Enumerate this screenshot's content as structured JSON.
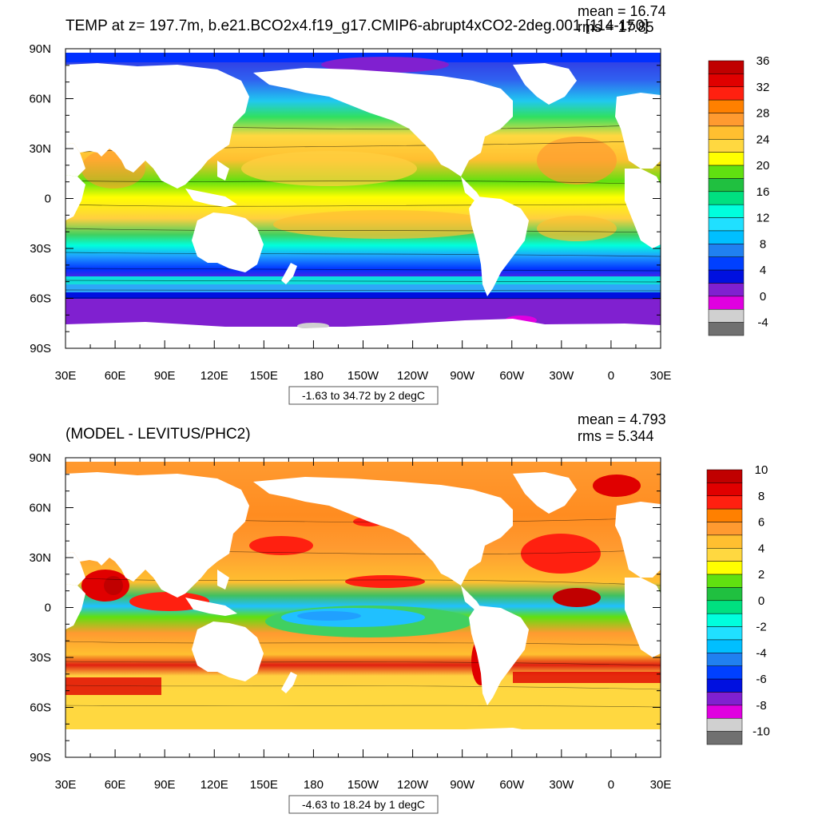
{
  "panels": [
    {
      "title": "TEMP at z= 197.7m, b.e21.BCO2x4.f19_g17.CMIP6-abrupt4xCO2-2deg.001 [114-150]",
      "mean_text": "mean = 16.74",
      "rms_text": "rms = 17.85",
      "range_text": "-1.63 to 34.72 by 2 degC",
      "lat_ticks": [
        "90N",
        "60N",
        "30N",
        "0",
        "30S",
        "60S",
        "90S"
      ],
      "lon_ticks": [
        "30E",
        "60E",
        "90E",
        "120E",
        "150E",
        "180",
        "150W",
        "120W",
        "90W",
        "60W",
        "30W",
        "0",
        "30E"
      ],
      "colorbar": {
        "labels": [
          "36",
          "32",
          "28",
          "24",
          "20",
          "16",
          "12",
          "8",
          "4",
          "0",
          "-4"
        ],
        "colors": [
          "#c00000",
          "#e00000",
          "#ff2010",
          "#ff8000",
          "#ff9a30",
          "#ffbf30",
          "#ffd840",
          "#ffff00",
          "#60e010",
          "#20c040",
          "#00e080",
          "#00ffdd",
          "#20e0ff",
          "#00bfff",
          "#2080f0",
          "#0040ff",
          "#0010e0",
          "#8020d0",
          "#e000e0",
          "#d0d0d0",
          "#707070"
        ]
      }
    },
    {
      "title": "(MODEL - LEVITUS/PHC2)",
      "mean_text": "mean = 4.793",
      "rms_text": "rms = 5.344",
      "range_text": "-4.63 to 18.24 by 1 degC",
      "lat_ticks": [
        "90N",
        "60N",
        "30N",
        "0",
        "30S",
        "60S",
        "90S"
      ],
      "lon_ticks": [
        "30E",
        "60E",
        "90E",
        "120E",
        "150E",
        "180",
        "150W",
        "120W",
        "90W",
        "60W",
        "30W",
        "0",
        "30E"
      ],
      "colorbar": {
        "labels": [
          "10",
          "8",
          "6",
          "4",
          "2",
          "0",
          "-2",
          "-4",
          "-6",
          "-8",
          "-10"
        ],
        "colors": [
          "#c00000",
          "#e00000",
          "#ff2010",
          "#ff8000",
          "#ff9a30",
          "#ffbf30",
          "#ffd840",
          "#ffff00",
          "#60e010",
          "#20c040",
          "#00e080",
          "#00ffdd",
          "#20e0ff",
          "#00bfff",
          "#2080f0",
          "#0040ff",
          "#0010e0",
          "#8020d0",
          "#e000e0",
          "#d0d0d0",
          "#707070"
        ]
      }
    }
  ]
}
